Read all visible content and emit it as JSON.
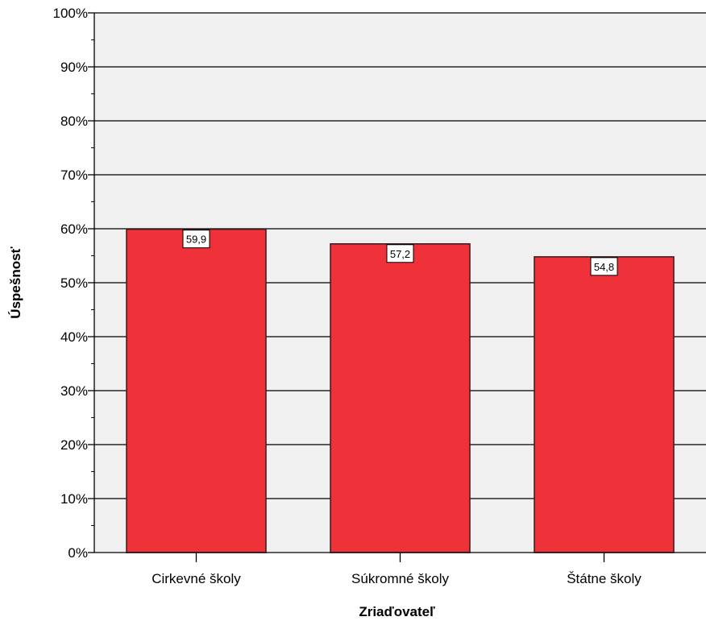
{
  "chart_data": {
    "type": "bar",
    "categories": [
      "Cirkevné školy",
      "Súkromné školy",
      "Štátne školy"
    ],
    "values": [
      59.9,
      57.2,
      54.8
    ],
    "data_labels": [
      "59,9",
      "57,2",
      "54,8"
    ],
    "title": "",
    "xlabel": "Zriaďovateľ",
    "ylabel": "Úspešnosť",
    "ylim": [
      0,
      100
    ],
    "yticks": [
      "0%",
      "10%",
      "20%",
      "30%",
      "40%",
      "50%",
      "60%",
      "70%",
      "80%",
      "90%",
      "100%"
    ],
    "grid": true,
    "legend": "none",
    "colors": {
      "bar": "#ef313a",
      "bar_outline": "#3a1a1a",
      "plot_background": "#f0f0f0",
      "gridline": "#000000"
    }
  }
}
